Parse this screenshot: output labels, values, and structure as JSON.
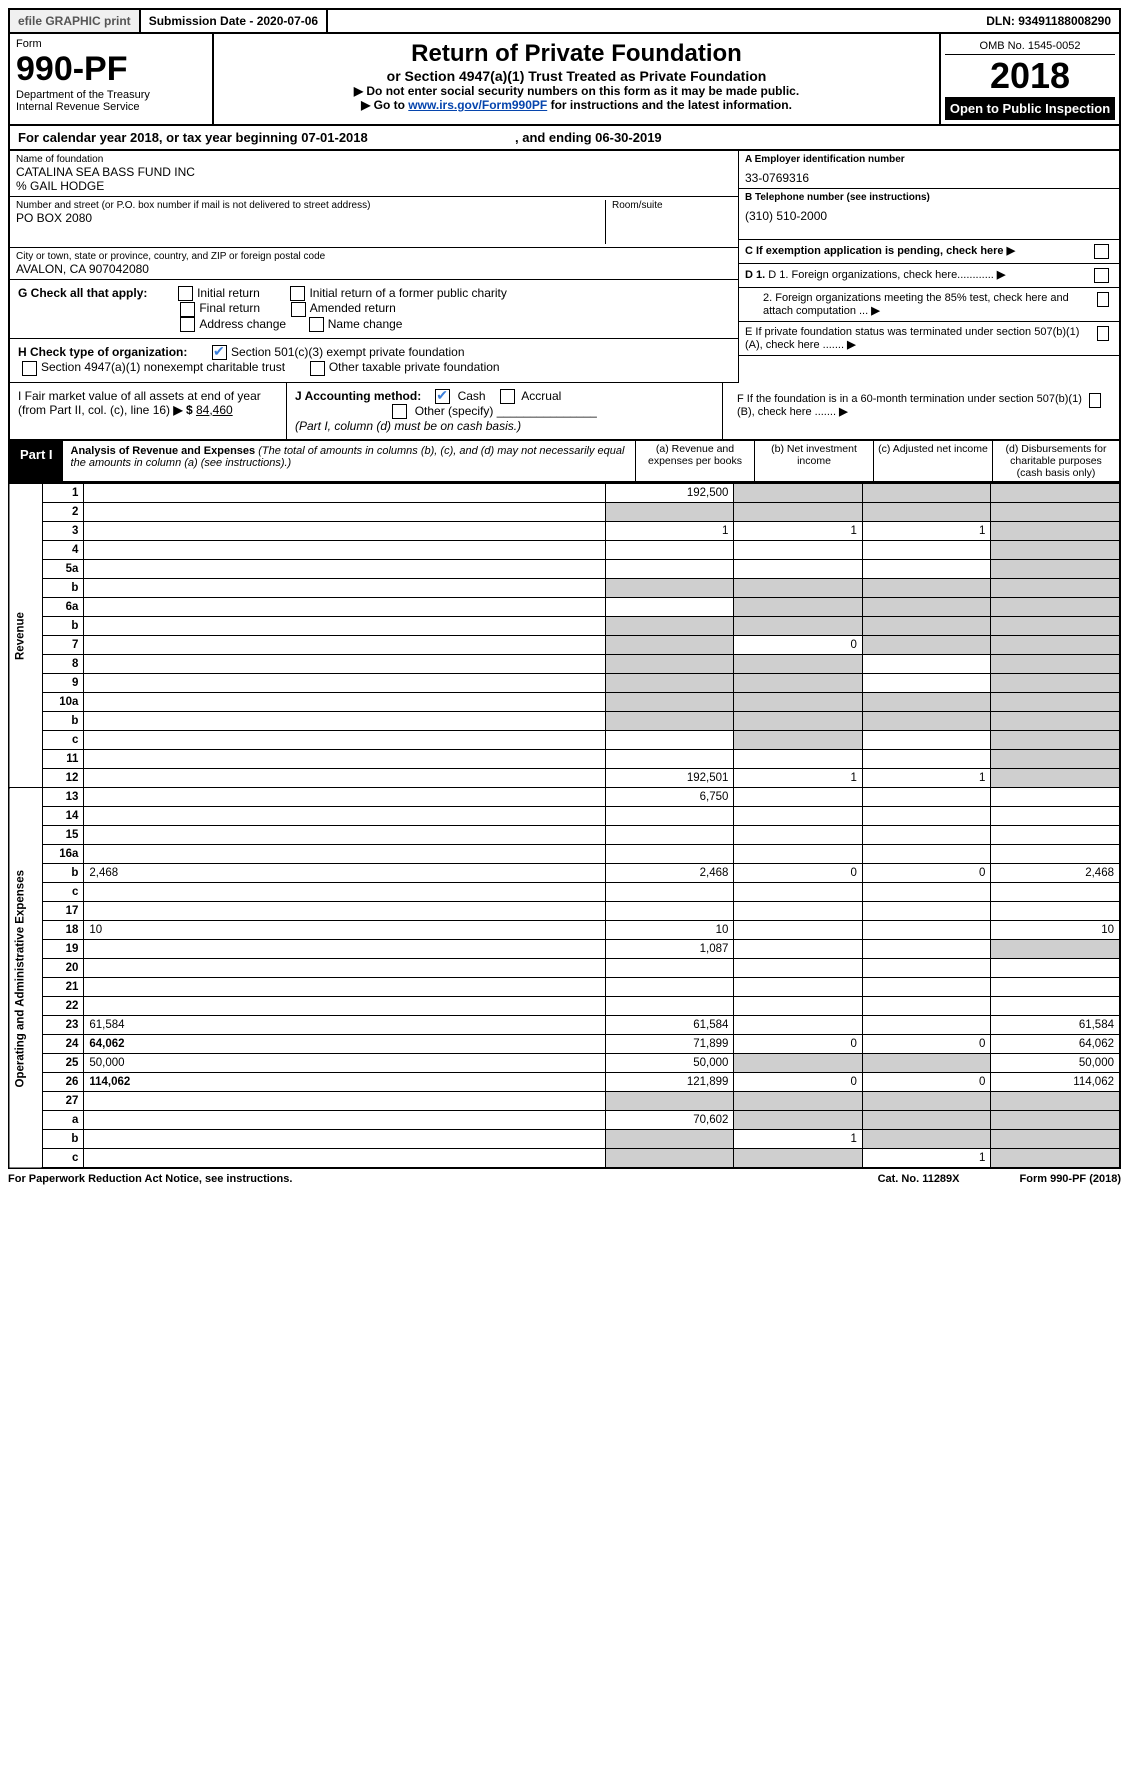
{
  "topbar": {
    "efile": "efile GRAPHIC print",
    "submission": "Submission Date - 2020-07-06",
    "dln": "DLN: 93491188008290"
  },
  "header": {
    "form_word": "Form",
    "form_number": "990-PF",
    "dept": "Department of the Treasury",
    "irs": "Internal Revenue Service",
    "title": "Return of Private Foundation",
    "subtitle": "or Section 4947(a)(1) Trust Treated as Private Foundation",
    "note1": "▶ Do not enter social security numbers on this form as it may be made public.",
    "note2_pre": "▶ Go to ",
    "note2_link": "www.irs.gov/Form990PF",
    "note2_post": " for instructions and the latest information.",
    "omb": "OMB No. 1545-0052",
    "year": "2018",
    "open": "Open to Public Inspection"
  },
  "calendar": {
    "text_pre": "For calendar year 2018, or tax year beginning ",
    "begin": "07-01-2018",
    "text_mid": " , and ending ",
    "end": "06-30-2019"
  },
  "entity": {
    "name_label": "Name of foundation",
    "name": "CATALINA SEA BASS FUND INC",
    "co": "% GAIL HODGE",
    "addr_label": "Number and street (or P.O. box number if mail is not delivered to street address)",
    "addr": "PO BOX 2080",
    "room_label": "Room/suite",
    "city_label": "City or town, state or province, country, and ZIP or foreign postal code",
    "city": "AVALON, CA  907042080",
    "ein_label": "A Employer identification number",
    "ein": "33-0769316",
    "phone_label": "B Telephone number (see instructions)",
    "phone": "(310) 510-2000",
    "c_label": "C If exemption application is pending, check here",
    "d1_label": "D 1. Foreign organizations, check here............",
    "d2_label": "2. Foreign organizations meeting the 85% test, check here and attach computation ...",
    "e_label": "E  If private foundation status was terminated under section 507(b)(1)(A), check here .......",
    "f_label": "F  If the foundation is in a 60-month termination under section 507(b)(1)(B), check here ......."
  },
  "g": {
    "label": "G Check all that apply:",
    "opts": [
      "Initial return",
      "Initial return of a former public charity",
      "Final return",
      "Amended return",
      "Address change",
      "Name change"
    ]
  },
  "h": {
    "label": "H Check type of organization:",
    "opt1": "Section 501(c)(3) exempt private foundation",
    "opt2": "Section 4947(a)(1) nonexempt charitable trust",
    "opt3": "Other taxable private foundation"
  },
  "i": {
    "label_pre": "I Fair market value of all assets at end of year (from Part II, col. (c), line 16) ",
    "arrow": "▶ $",
    "value": "84,460"
  },
  "j": {
    "label": "J Accounting method:",
    "cash": "Cash",
    "accrual": "Accrual",
    "other": "Other (specify)",
    "note": "(Part I, column (d) must be on cash basis.)"
  },
  "part1": {
    "label": "Part I",
    "title_bold": "Analysis of Revenue and Expenses",
    "title_rest": " (The total of amounts in columns (b), (c), and (d) may not necessarily equal the amounts in column (a) (see instructions).)",
    "col_a": "(a)   Revenue and expenses per books",
    "col_b": "(b)   Net investment income",
    "col_c": "(c)   Adjusted net income",
    "col_d": "(d)   Disbursements for charitable purposes (cash basis only)"
  },
  "side": {
    "revenue": "Revenue",
    "expenses": "Operating and Administrative Expenses"
  },
  "rows": [
    {
      "n": "1",
      "d": "",
      "a": "192,500",
      "b": "",
      "c": "",
      "sb": true,
      "sc": true,
      "sd": true
    },
    {
      "n": "2",
      "d": "",
      "a": "",
      "b": "",
      "c": "",
      "sa": true,
      "sb": true,
      "sc": true,
      "sd": true,
      "bold_not": true
    },
    {
      "n": "3",
      "d": "",
      "a": "1",
      "b": "1",
      "c": "1",
      "sd": true
    },
    {
      "n": "4",
      "d": "",
      "a": "",
      "b": "",
      "c": "",
      "sd": true
    },
    {
      "n": "5a",
      "d": "",
      "a": "",
      "b": "",
      "c": "",
      "sd": true
    },
    {
      "n": "b",
      "d": "",
      "a": "",
      "b": "",
      "c": "",
      "sa": true,
      "sb": true,
      "sc": true,
      "sd": true
    },
    {
      "n": "6a",
      "d": "",
      "a": "",
      "b": "",
      "c": "",
      "sb": true,
      "sc": true,
      "sd": true
    },
    {
      "n": "b",
      "d": "",
      "a": "",
      "b": "",
      "c": "",
      "sa": true,
      "sb": true,
      "sc": true,
      "sd": true
    },
    {
      "n": "7",
      "d": "",
      "a": "",
      "b": "0",
      "c": "",
      "sa": true,
      "sc": true,
      "sd": true
    },
    {
      "n": "8",
      "d": "",
      "a": "",
      "b": "",
      "c": "",
      "sa": true,
      "sb": true,
      "sd": true
    },
    {
      "n": "9",
      "d": "",
      "a": "",
      "b": "",
      "c": "",
      "sa": true,
      "sb": true,
      "sd": true
    },
    {
      "n": "10a",
      "d": "",
      "a": "",
      "b": "",
      "c": "",
      "sa": true,
      "sb": true,
      "sc": true,
      "sd": true
    },
    {
      "n": "b",
      "d": "",
      "a": "",
      "b": "",
      "c": "",
      "sa": true,
      "sb": true,
      "sc": true,
      "sd": true
    },
    {
      "n": "c",
      "d": "",
      "a": "",
      "b": "",
      "c": "",
      "sb": true,
      "sd": true
    },
    {
      "n": "11",
      "d": "",
      "a": "",
      "b": "",
      "c": "",
      "sd": true
    },
    {
      "n": "12",
      "d": "",
      "a": "192,501",
      "b": "1",
      "c": "1",
      "sd": true,
      "bold": true
    }
  ],
  "exp_rows": [
    {
      "n": "13",
      "d": "",
      "a": "6,750",
      "b": "",
      "c": ""
    },
    {
      "n": "14",
      "d": "",
      "a": "",
      "b": "",
      "c": ""
    },
    {
      "n": "15",
      "d": "",
      "a": "",
      "b": "",
      "c": ""
    },
    {
      "n": "16a",
      "d": "",
      "a": "",
      "b": "",
      "c": ""
    },
    {
      "n": "b",
      "d": "2,468",
      "a": "2,468",
      "b": "0",
      "c": "0"
    },
    {
      "n": "c",
      "d": "",
      "a": "",
      "b": "",
      "c": ""
    },
    {
      "n": "17",
      "d": "",
      "a": "",
      "b": "",
      "c": ""
    },
    {
      "n": "18",
      "d": "10",
      "a": "10",
      "b": "",
      "c": ""
    },
    {
      "n": "19",
      "d": "",
      "a": "1,087",
      "b": "",
      "c": "",
      "sd": true
    },
    {
      "n": "20",
      "d": "",
      "a": "",
      "b": "",
      "c": ""
    },
    {
      "n": "21",
      "d": "",
      "a": "",
      "b": "",
      "c": ""
    },
    {
      "n": "22",
      "d": "",
      "a": "",
      "b": "",
      "c": ""
    },
    {
      "n": "23",
      "d": "61,584",
      "a": "61,584",
      "b": "",
      "c": ""
    },
    {
      "n": "24",
      "d": "64,062",
      "a": "71,899",
      "b": "0",
      "c": "0",
      "bold": true
    },
    {
      "n": "25",
      "d": "50,000",
      "a": "50,000",
      "b": "",
      "c": "",
      "sb": true,
      "sc": true
    },
    {
      "n": "26",
      "d": "114,062",
      "a": "121,899",
      "b": "0",
      "c": "0",
      "bold": true
    },
    {
      "n": "27",
      "d": "",
      "a": "",
      "b": "",
      "c": "",
      "sa": true,
      "sb": true,
      "sc": true,
      "sd": true
    },
    {
      "n": "a",
      "d": "",
      "a": "70,602",
      "b": "",
      "c": "",
      "sb": true,
      "sc": true,
      "sd": true,
      "bold": true
    },
    {
      "n": "b",
      "d": "",
      "a": "",
      "b": "1",
      "c": "",
      "sa": true,
      "sc": true,
      "sd": true,
      "bold": true
    },
    {
      "n": "c",
      "d": "",
      "a": "",
      "b": "",
      "c": "1",
      "sa": true,
      "sb": true,
      "sd": true,
      "bold": true
    }
  ],
  "footer": {
    "left": "For Paperwork Reduction Act Notice, see instructions.",
    "mid": "Cat. No. 11289X",
    "right": "Form 990-PF (2018)"
  }
}
